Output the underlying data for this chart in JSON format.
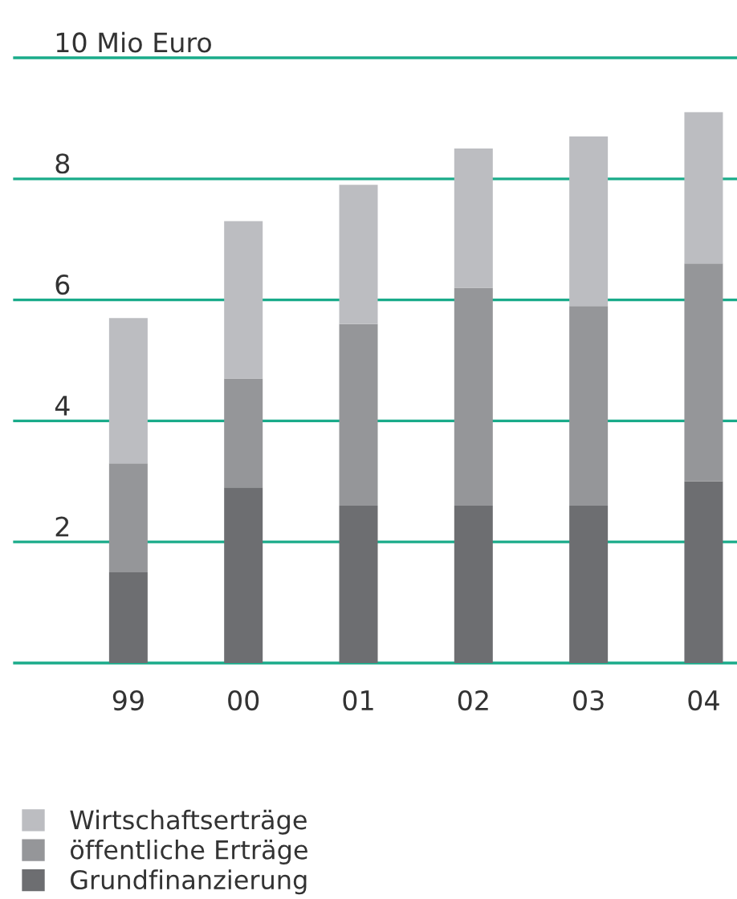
{
  "chart_data": {
    "type": "bar",
    "stacked": true,
    "categories": [
      "99",
      "00",
      "01",
      "02",
      "03",
      "04"
    ],
    "series": [
      {
        "name": "Grundfinanzierung",
        "color": "#6d6e71",
        "values": [
          1.5,
          2.9,
          2.6,
          2.6,
          2.6,
          3.0
        ]
      },
      {
        "name": "öffentliche Erträge",
        "color": "#959699",
        "values": [
          1.8,
          1.8,
          3.0,
          3.6,
          3.3,
          3.6
        ]
      },
      {
        "name": "Wirtschaftserträge",
        "color": "#bcbdc1",
        "values": [
          2.4,
          2.6,
          2.3,
          2.3,
          2.8,
          2.5
        ]
      }
    ],
    "ylim": [
      0,
      10
    ],
    "yticks": [
      {
        "value": 0,
        "label": null
      },
      2,
      4,
      6,
      8,
      {
        "value": 10,
        "label": "10 Mio Euro"
      }
    ],
    "grid": "y",
    "legend": "bottom"
  }
}
